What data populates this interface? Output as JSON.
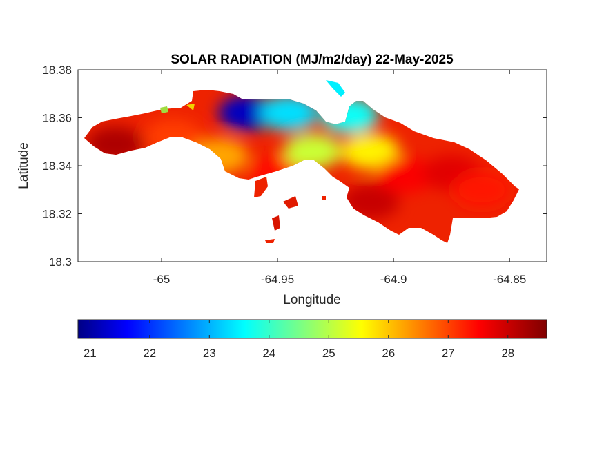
{
  "chart_data": {
    "type": "heatmap",
    "title": "SOLAR RADIATION (MJ/m2/day) 22-May-2025",
    "xlabel": "Longitude",
    "ylabel": "Latitude",
    "xlim": [
      -65.036,
      -64.834
    ],
    "ylim": [
      18.3,
      18.38
    ],
    "xticks": [
      -65,
      -64.95,
      -64.9,
      -64.85
    ],
    "xtick_labels": [
      "-65",
      "-64.95",
      "-64.9",
      "-64.85"
    ],
    "yticks": [
      18.3,
      18.32,
      18.34,
      18.36,
      18.38
    ],
    "ytick_labels": [
      "18.3",
      "18.32",
      "18.34",
      "18.36",
      "18.38"
    ],
    "grid": false,
    "colorbar": {
      "orientation": "horizontal",
      "position": "below plot",
      "colormap": "jet",
      "range": [
        20.8,
        28.65
      ],
      "ticks": [
        21,
        22,
        23,
        24,
        25,
        26,
        27,
        28
      ],
      "tick_labels": [
        "21",
        "22",
        "23",
        "24",
        "25",
        "26",
        "27",
        "28"
      ]
    },
    "regions": [
      {
        "name": "",
        "lon": -65.02,
        "lat": 18.349,
        "value": 28.3
      },
      {
        "name": "",
        "lon": -64.995,
        "lat": 18.352,
        "value": 27.2
      },
      {
        "name": "",
        "lon": -64.975,
        "lat": 18.344,
        "value": 26.4
      },
      {
        "name": "",
        "lon": -64.963,
        "lat": 18.362,
        "value": 21.3
      },
      {
        "name": "",
        "lon": -64.945,
        "lat": 18.362,
        "value": 23.5
      },
      {
        "name": "",
        "lon": -64.95,
        "lat": 18.337,
        "value": 27.6
      },
      {
        "name": "",
        "lon": -64.935,
        "lat": 18.346,
        "value": 25.3
      },
      {
        "name": "",
        "lon": -64.919,
        "lat": 18.361,
        "value": 23.8
      },
      {
        "name": "",
        "lon": -64.91,
        "lat": 18.346,
        "value": 25.8
      },
      {
        "name": "",
        "lon": -64.91,
        "lat": 18.325,
        "value": 28.1
      },
      {
        "name": "",
        "lon": -64.895,
        "lat": 18.336,
        "value": 27.7
      },
      {
        "name": "",
        "lon": -64.875,
        "lat": 18.337,
        "value": 27.9
      },
      {
        "name": "",
        "lon": -64.862,
        "lat": 18.33,
        "value": 27.5
      }
    ]
  }
}
